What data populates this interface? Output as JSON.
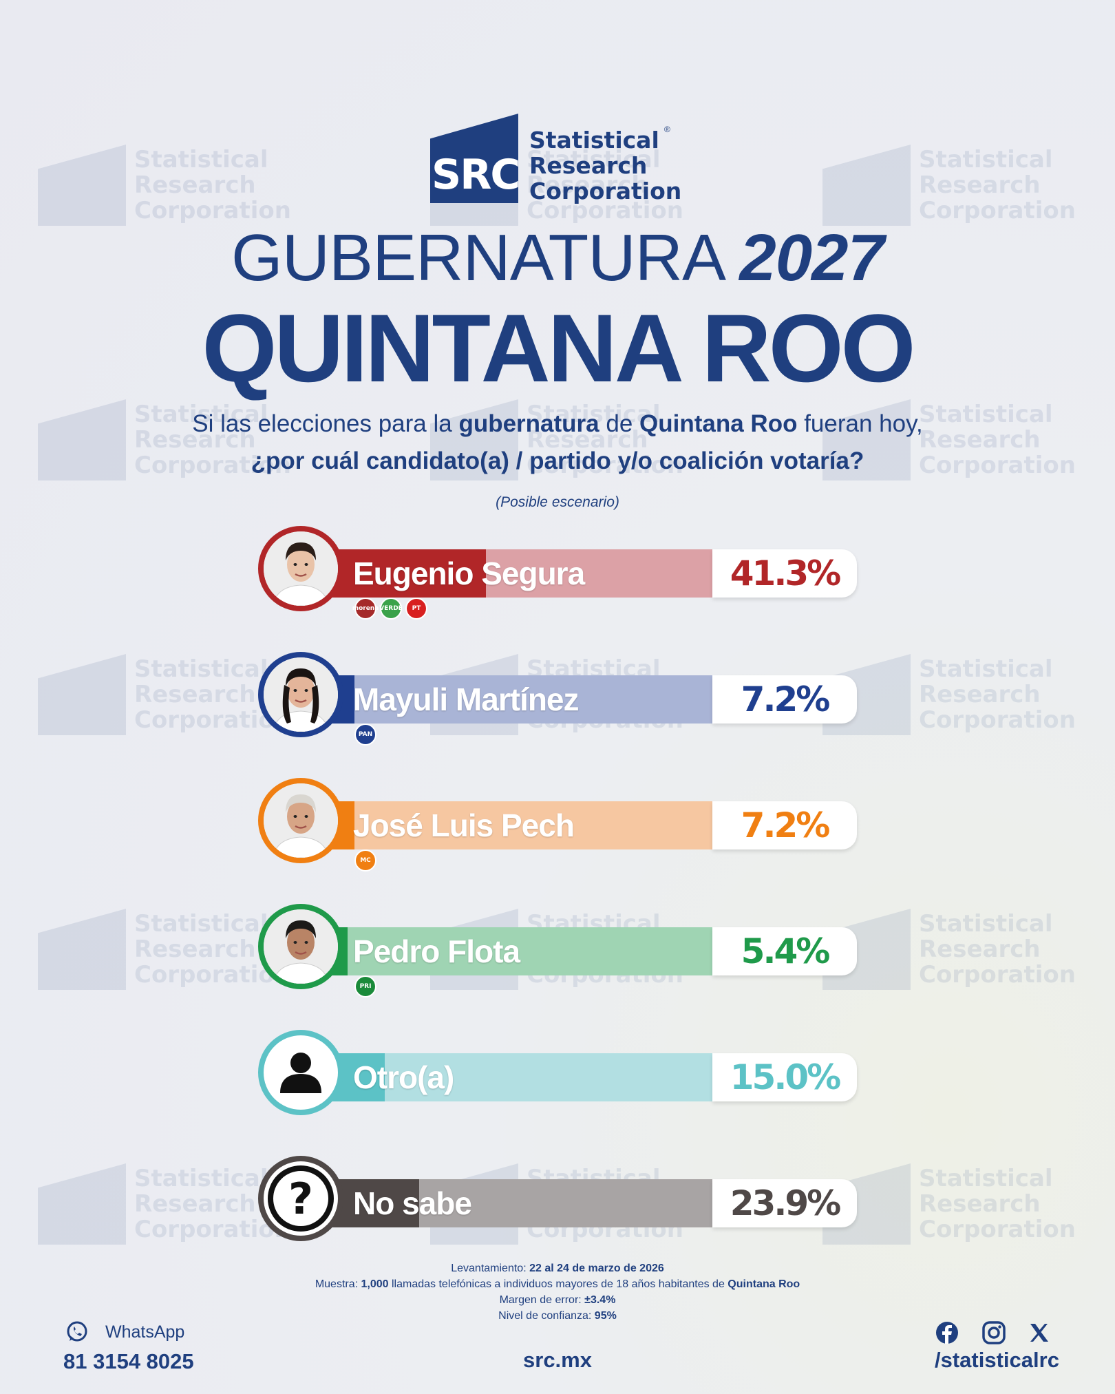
{
  "brand": {
    "logo_mark": "SRC",
    "line1": "Statistical",
    "line2": "Research",
    "line3": "Corporation",
    "registered": "®"
  },
  "title": {
    "line1_text": "GUBERNATURA",
    "line1_year": "2027",
    "line2": "QUINTANA ROO"
  },
  "question": {
    "part1": "Si las elecciones para la ",
    "bold1": "gubernatura",
    "part2": " de ",
    "bold2": "Quintana Roo",
    "part3": " fueran hoy,",
    "line2": "¿por cuál candidato(a) / partido y/o coalición votaría?",
    "scenario": "(Posible escenario)"
  },
  "chart_data": {
    "type": "bar",
    "categories": [
      "Eugenio Segura",
      "Mayuli Martínez",
      "José Luis Pech",
      "Pedro Flota",
      "Otro(a)",
      "No sabe"
    ],
    "values": [
      41.3,
      7.2,
      7.2,
      5.4,
      15.0,
      23.9
    ],
    "labels": [
      "41.3%",
      "7.2%",
      "7.2%",
      "5.4%",
      "15.0%",
      "23.9%"
    ],
    "unit": "%",
    "ylim": [
      0,
      100
    ],
    "colors": [
      "#b12628",
      "#1f3f8f",
      "#f07f12",
      "#1f9a4a",
      "#5cc2c6",
      "#4f4847"
    ],
    "light_colors": [
      "#dca1a6",
      "#a9b4d6",
      "#f6c7a1",
      "#9fd4b3",
      "#b2dfe2",
      "#a8a4a4"
    ],
    "parties": [
      [
        "morena",
        "VERDE",
        "PT"
      ],
      [
        "PAN"
      ],
      [
        "MC"
      ],
      [
        "PRI"
      ],
      [],
      []
    ]
  },
  "icons": {
    "row5": "person-icon",
    "row6": "question-icon",
    "whatsapp": "whatsapp-icon",
    "facebook": "facebook-icon",
    "instagram": "instagram-icon",
    "x": "x-icon"
  },
  "methodology": {
    "fieldwork_label": "Levantamiento: ",
    "fieldwork_value": "22 al 24 de marzo de 2026",
    "sample_label": "Muestra: ",
    "sample_bold": "1,000",
    "sample_text": " llamadas telefónicas a individuos mayores de 18 años habitantes de ",
    "sample_place": "Quintana Roo",
    "error_label": "Margen de error: ",
    "error_value": "±3.4%",
    "confidence_label": "Nivel de confianza: ",
    "confidence_value": "95%"
  },
  "footer": {
    "whatsapp_label": "WhatsApp",
    "whatsapp_number": "81 3154 8025",
    "website": "src.mx",
    "handle": "/statisticalrc"
  }
}
